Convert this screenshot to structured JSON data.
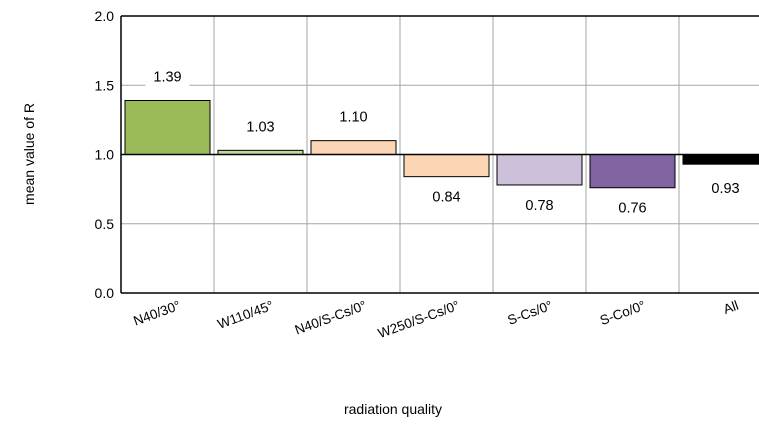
{
  "chart_data": {
    "type": "bar",
    "baseline": 1.0,
    "categories": [
      "N40/30°",
      "W110/45°",
      "N40/S-Cs/0°",
      "W250/S-Cs/0°",
      "S-Cs/0°",
      "S-Co/0°",
      "All"
    ],
    "values": [
      1.39,
      1.03,
      1.1,
      0.84,
      0.78,
      0.76,
      0.93
    ],
    "data_labels": [
      "1.39",
      "1.03",
      "1.10",
      "0.84",
      "0.78",
      "0.76",
      "0.93"
    ],
    "colors": [
      "#9bbb59",
      "#c3d69b",
      "#fcd5b5",
      "#fcd5b5",
      "#ccc0da",
      "#8064a2",
      "#000000"
    ],
    "xlabel": "radiation quality",
    "ylabel": "mean value of  R",
    "ylim": [
      0.0,
      2.0
    ],
    "yticks": [
      "0.0",
      "0.5",
      "1.0",
      "1.5",
      "2.0"
    ],
    "grid": true
  }
}
